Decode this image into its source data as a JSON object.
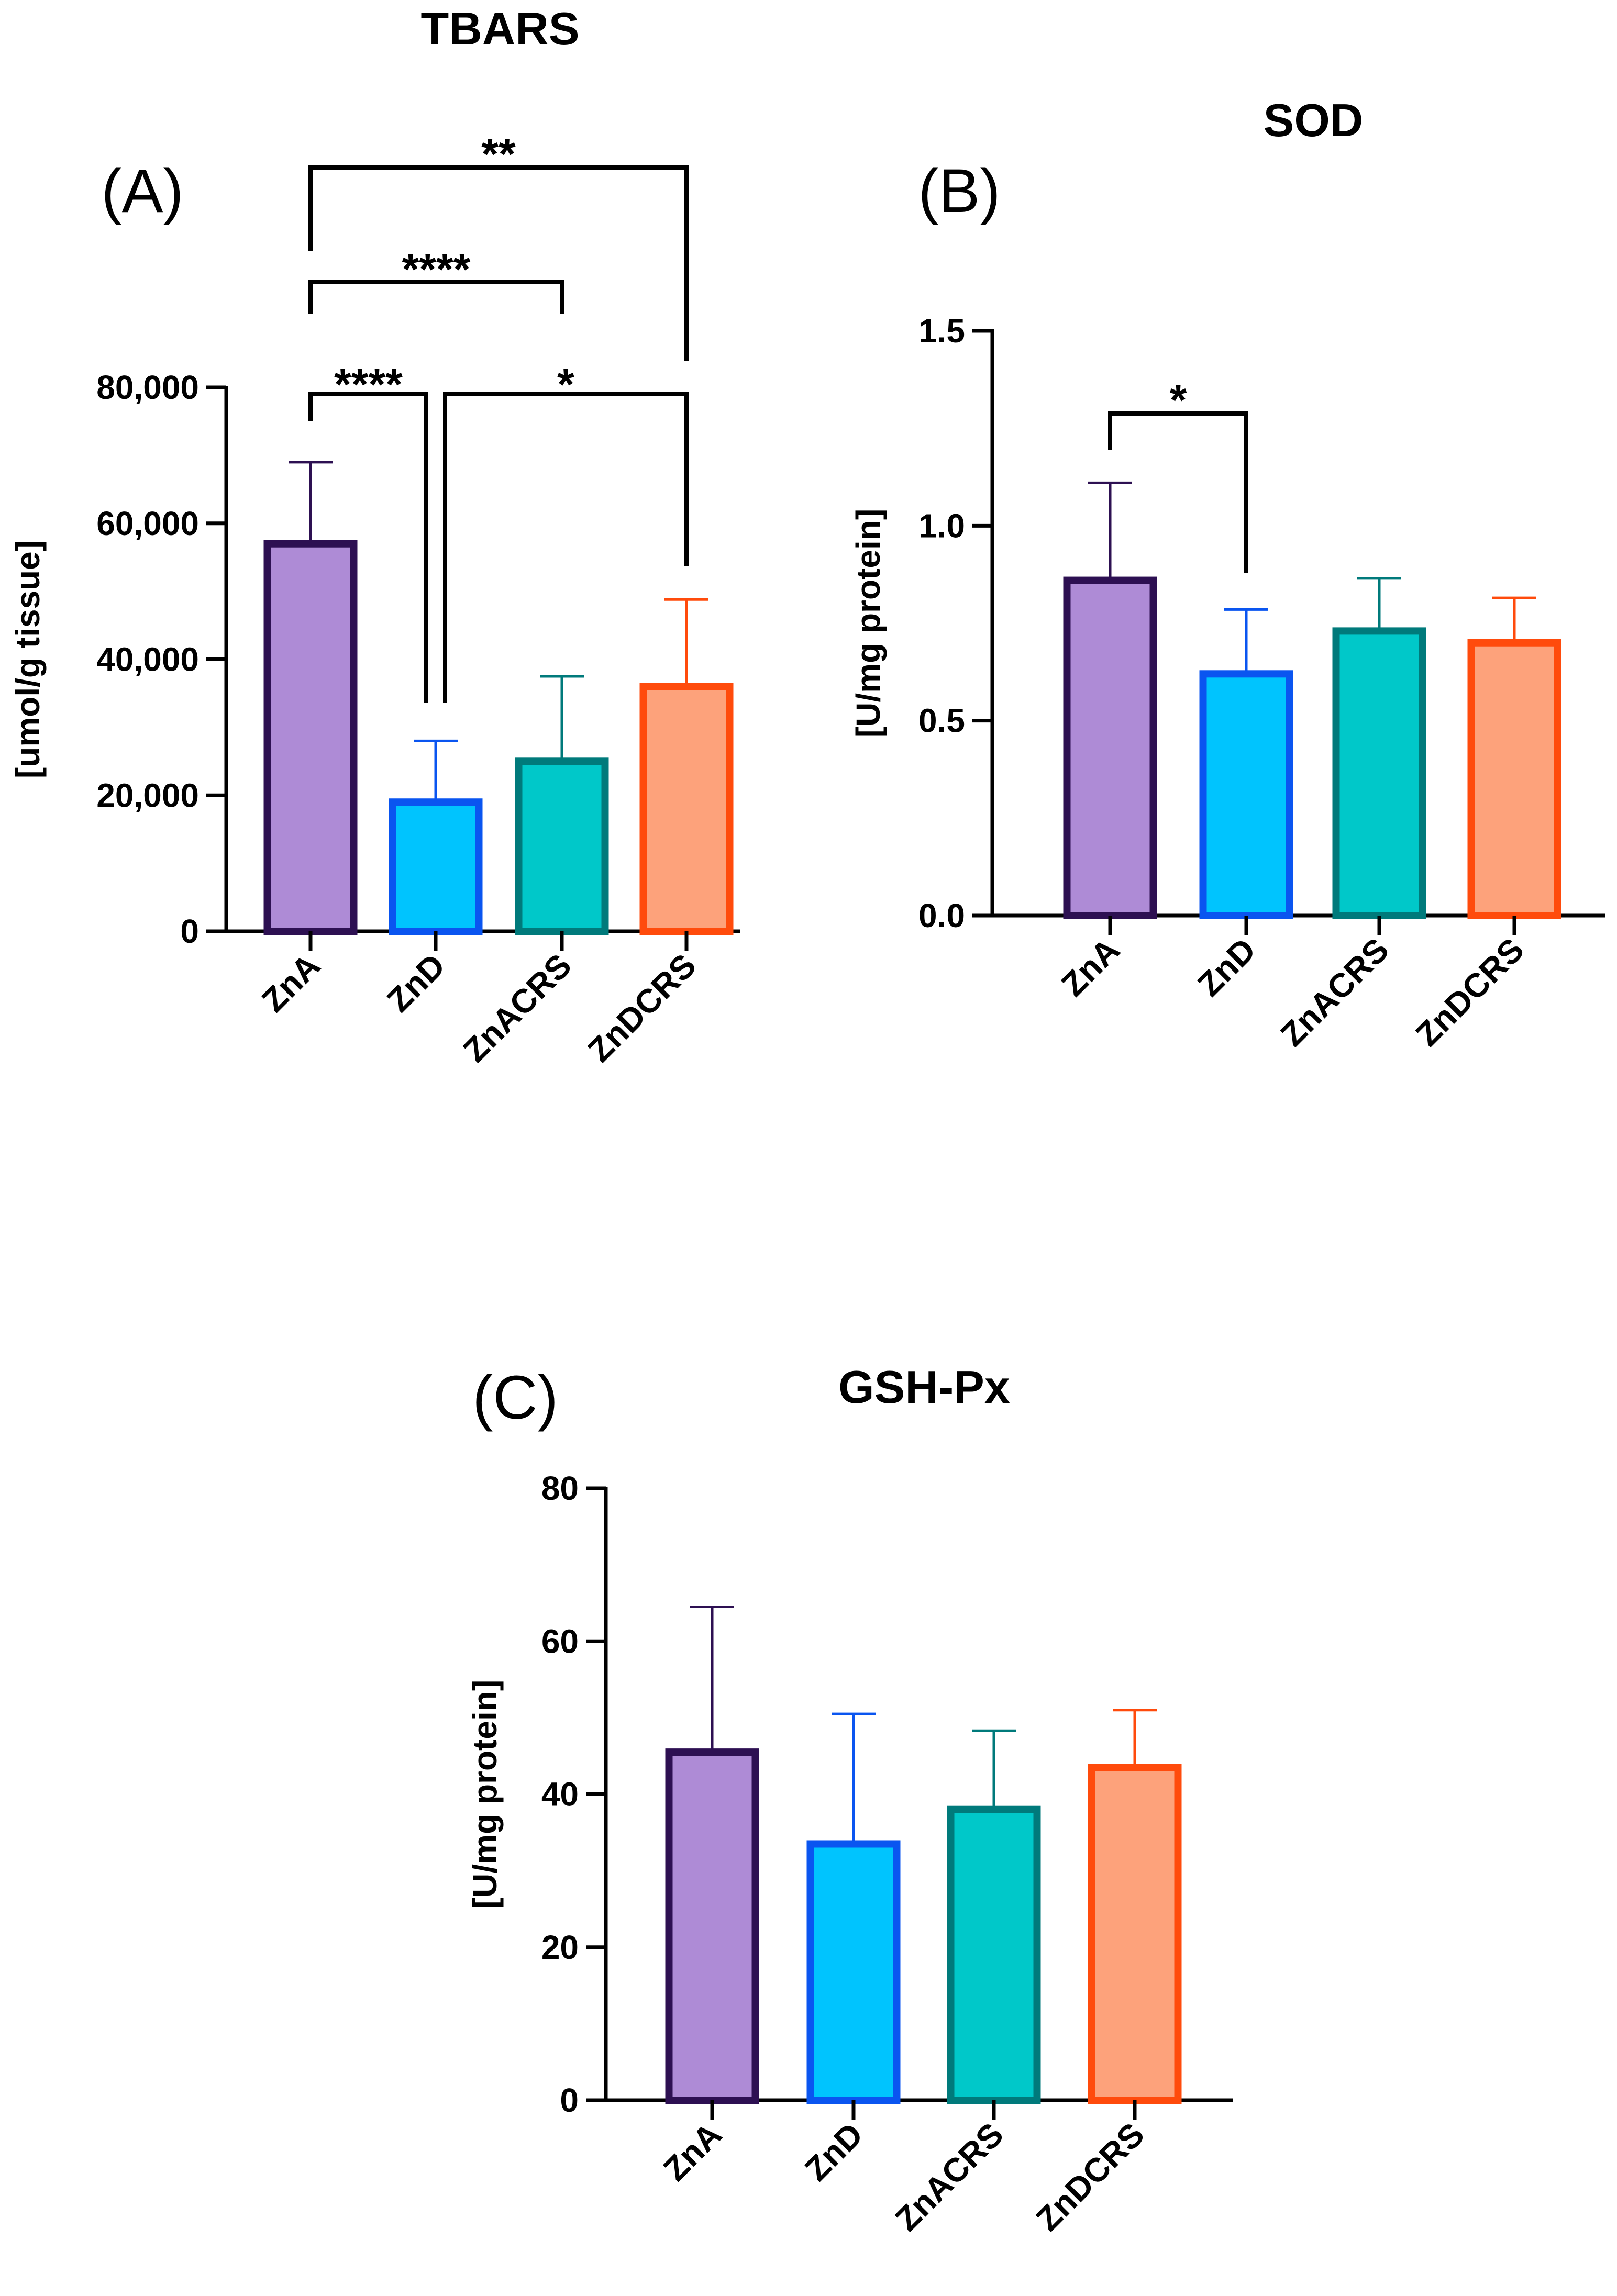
{
  "chart_data": [
    {
      "panel_label": "(A)",
      "type": "bar",
      "title": "TBARS",
      "xlabel": "",
      "ylabel": "[umol/g tissue]",
      "categories": [
        "ZnA",
        "ZnD",
        "ZnACRS",
        "ZnDCRS"
      ],
      "values": [
        57000,
        19000,
        25000,
        36000
      ],
      "errors": [
        12000,
        9000,
        12500,
        12800
      ],
      "ylim": [
        0,
        80000
      ],
      "yticks": [
        0,
        20000,
        40000,
        60000,
        80000
      ],
      "ytick_labels": [
        "0",
        "20,000",
        "40,000",
        "60,000",
        "80,000"
      ],
      "significance": [
        {
          "from": 0,
          "to": 1,
          "label": "****"
        },
        {
          "from": 1,
          "to": 3,
          "label": "*"
        },
        {
          "from": 0,
          "to": 2,
          "label": "****"
        },
        {
          "from": 0,
          "to": 3,
          "label": "**"
        }
      ]
    },
    {
      "panel_label": "(B)",
      "type": "bar",
      "title": "SOD",
      "xlabel": "",
      "ylabel": "[U/mg protein]",
      "categories": [
        "ZnA",
        "ZnD",
        "ZnACRS",
        "ZnDCRS"
      ],
      "values": [
        0.86,
        0.62,
        0.73,
        0.7
      ],
      "errors": [
        0.25,
        0.165,
        0.135,
        0.115
      ],
      "ylim": [
        0,
        1.5
      ],
      "yticks": [
        0,
        0.5,
        1.0,
        1.5
      ],
      "ytick_labels": [
        "0.0",
        "0.5",
        "1.0",
        "1.5"
      ],
      "significance": [
        {
          "from": 0,
          "to": 1,
          "label": "*"
        }
      ]
    },
    {
      "panel_label": "(C)",
      "type": "bar",
      "title": "GSH-Px",
      "xlabel": "",
      "ylabel": "[U/mg protein]",
      "categories": [
        "ZnA",
        "ZnD",
        "ZnACRS",
        "ZnDCRS"
      ],
      "values": [
        45.5,
        33.5,
        38.0,
        43.5
      ],
      "errors": [
        19.0,
        17.0,
        10.3,
        7.5
      ],
      "ylim": [
        0,
        80
      ],
      "yticks": [
        0,
        20,
        40,
        60,
        80
      ],
      "ytick_labels": [
        "0",
        "20",
        "40",
        "60",
        "80"
      ],
      "significance": []
    }
  ],
  "colors": {
    "bar_fill": [
      "#ae8bd6",
      "#00c4fe",
      "#00c8c9",
      "#fda27b"
    ],
    "bar_edge": [
      "#2d1052",
      "#0a55f0",
      "#007a7b",
      "#ff4b0c"
    ],
    "axis": "#000000"
  }
}
